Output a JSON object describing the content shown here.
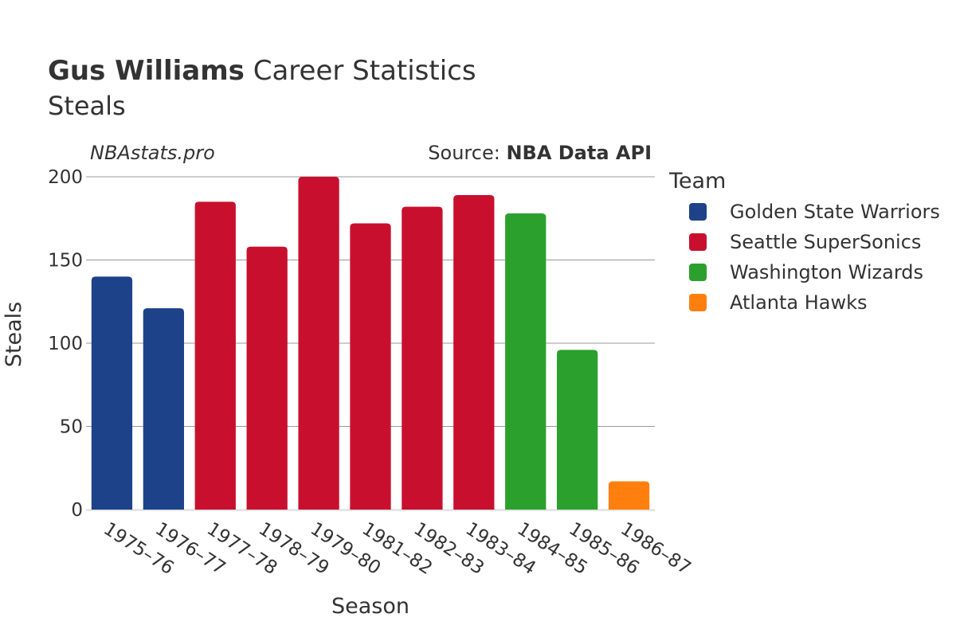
{
  "title": {
    "bold": "Gus Williams",
    "rest": " Career Statistics",
    "line2": "Steals"
  },
  "watermark": "NBAstats.pro",
  "source": {
    "prefix": "Source: ",
    "name": "NBA Data API"
  },
  "legend": {
    "title": "Team",
    "items": [
      {
        "name": "Golden State Warriors",
        "color": "#1d428a"
      },
      {
        "name": "Seattle SuperSonics",
        "color": "#c8102e"
      },
      {
        "name": "Washington Wizards",
        "color": "#2ca02c"
      },
      {
        "name": "Atlanta Hawks",
        "color": "#ff7f0e"
      }
    ]
  },
  "chart_data": {
    "type": "bar",
    "title": "Gus Williams Career Statistics",
    "subtitle": "Steals",
    "xlabel": "Season",
    "ylabel": "Steals",
    "ylim": [
      0,
      200
    ],
    "yticks": [
      0,
      50,
      100,
      150,
      200
    ],
    "grid": true,
    "legend_position": "right",
    "categories": [
      "1975–76",
      "1976–77",
      "1977–78",
      "1978–79",
      "1979–80",
      "1981–82",
      "1982–83",
      "1983–84",
      "1984–85",
      "1985–86",
      "1986–87"
    ],
    "values": [
      140,
      121,
      185,
      158,
      200,
      172,
      182,
      189,
      178,
      96,
      17
    ],
    "teams": [
      "Golden State Warriors",
      "Golden State Warriors",
      "Seattle SuperSonics",
      "Seattle SuperSonics",
      "Seattle SuperSonics",
      "Seattle SuperSonics",
      "Seattle SuperSonics",
      "Seattle SuperSonics",
      "Washington Wizards",
      "Washington Wizards",
      "Atlanta Hawks"
    ]
  }
}
